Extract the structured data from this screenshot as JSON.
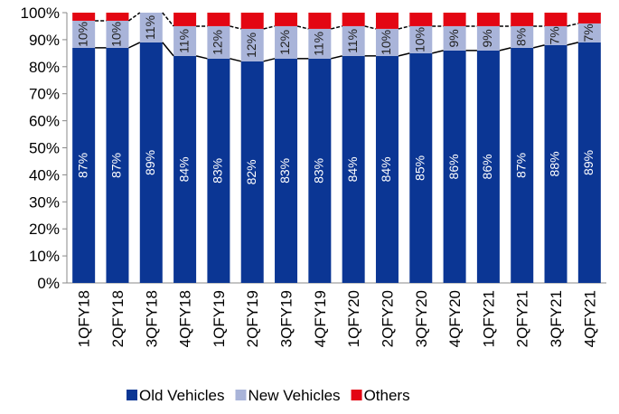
{
  "chart_data": {
    "type": "stacked_bar",
    "categories": [
      "1QFY18",
      "2QFY18",
      "3QFY18",
      "4QFY18",
      "1QFY19",
      "2QFY19",
      "3QFY19",
      "4QFY19",
      "1QFY20",
      "2QFY20",
      "3QFY20",
      "4QFY20",
      "1QFY21",
      "2QFY21",
      "3QFY21",
      "4QFY21"
    ],
    "series": [
      {
        "name": "Old Vehicles",
        "color": "#0b3694",
        "values": [
          87,
          87,
          89,
          84,
          83,
          82,
          83,
          83,
          84,
          84,
          85,
          86,
          86,
          87,
          88,
          89
        ],
        "value_labels": [
          "87%",
          "87%",
          "89%",
          "84%",
          "83%",
          "82%",
          "83%",
          "83%",
          "84%",
          "84%",
          "85%",
          "86%",
          "86%",
          "87%",
          "88%",
          "89%"
        ]
      },
      {
        "name": "New Vehicles",
        "color": "#a9b4d9",
        "values": [
          10,
          10,
          11,
          11,
          12,
          12,
          12,
          11,
          11,
          10,
          10,
          9,
          9,
          8,
          7,
          7
        ],
        "value_labels": [
          "10%",
          "10%",
          "11%",
          "11%",
          "12%",
          "12%",
          "12%",
          "11%",
          "11%",
          "10%",
          "10%",
          "9%",
          "9%",
          "8%",
          "7%",
          "7%"
        ]
      },
      {
        "name": "Others",
        "color": "#e30613",
        "values": [
          3,
          3,
          0,
          5,
          5,
          6,
          5,
          6,
          5,
          6,
          5,
          5,
          5,
          5,
          5,
          4
        ]
      }
    ],
    "ylim": [
      0,
      100
    ],
    "yticks": [
      {
        "value": 0,
        "label": "0%"
      },
      {
        "value": 10,
        "label": "10%"
      },
      {
        "value": 20,
        "label": "20%"
      },
      {
        "value": 30,
        "label": "30%"
      },
      {
        "value": 40,
        "label": "40%"
      },
      {
        "value": 50,
        "label": "50%"
      },
      {
        "value": 60,
        "label": "60%"
      },
      {
        "value": 70,
        "label": "70%"
      },
      {
        "value": 80,
        "label": "80%"
      },
      {
        "value": 90,
        "label": "90%"
      },
      {
        "value": 100,
        "label": "100%"
      }
    ],
    "legend": "bottom"
  }
}
